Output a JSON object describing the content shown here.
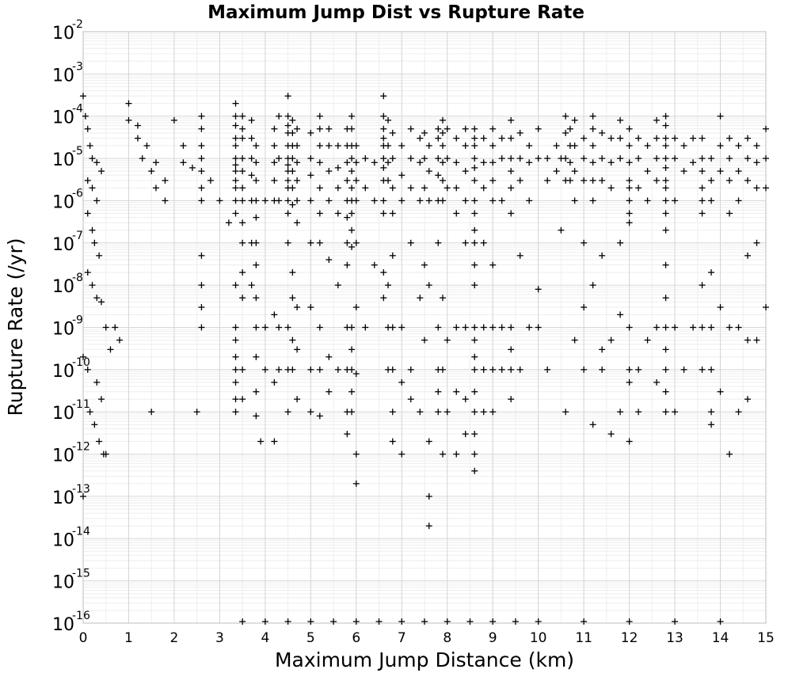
{
  "chart_data": {
    "type": "scatter",
    "title": "Maximum Jump Dist vs Rupture Rate",
    "xlabel": "Maximum Jump Distance (km)",
    "ylabel": "Rupture Rate (/yr)",
    "xlim": [
      0,
      15
    ],
    "ylim": [
      1e-16,
      0.01
    ],
    "yscale": "log",
    "grid": true,
    "marker": "+",
    "marker_color": "#000000",
    "x_ticks": [
      "0",
      "1",
      "2",
      "3",
      "4",
      "5",
      "6",
      "7",
      "8",
      "9",
      "10",
      "11",
      "12",
      "13",
      "14",
      "15"
    ],
    "y_ticks": [
      {
        "base": "10",
        "exp": "-2"
      },
      {
        "base": "10",
        "exp": "-3"
      },
      {
        "base": "10",
        "exp": "-4"
      },
      {
        "base": "10",
        "exp": "-5"
      },
      {
        "base": "10",
        "exp": "-6"
      },
      {
        "base": "10",
        "exp": "-7"
      },
      {
        "base": "10",
        "exp": "-8"
      },
      {
        "base": "10",
        "exp": "-9"
      },
      {
        "base": "10",
        "exp": "-10"
      },
      {
        "base": "10",
        "exp": "-11"
      },
      {
        "base": "10",
        "exp": "-12"
      },
      {
        "base": "10",
        "exp": "-13"
      },
      {
        "base": "10",
        "exp": "-14"
      },
      {
        "base": "10",
        "exp": "-15"
      },
      {
        "base": "10",
        "exp": "-16"
      }
    ],
    "x": [
      0.0,
      0.05,
      0.1,
      0.15,
      0.2,
      0.3,
      0.4,
      0.1,
      0.2,
      0.3,
      0.1,
      0.2,
      0.25,
      0.35,
      0.1,
      0.2,
      0.3,
      0.4,
      0.5,
      0.6,
      0.0,
      0.1,
      0.3,
      0.4,
      0.15,
      0.25,
      0.35,
      0.45,
      0.7,
      0.8,
      1.0,
      1.2,
      1.3,
      1.5,
      1.6,
      1.8,
      1.0,
      1.2,
      1.4,
      1.6,
      1.8,
      2.0,
      2.2,
      2.4,
      2.6,
      2.6,
      2.6,
      2.6,
      2.6,
      2.6,
      2.6,
      2.6,
      2.6,
      2.6,
      2.6,
      2.2,
      2.8,
      3.0,
      3.2,
      3.35,
      3.35,
      3.35,
      3.35,
      3.35,
      3.35,
      3.35,
      3.35,
      3.35,
      3.35,
      3.35,
      3.35,
      3.35,
      3.35,
      3.35,
      3.35,
      3.35,
      3.35,
      3.35,
      3.35,
      3.5,
      3.5,
      3.5,
      3.5,
      3.5,
      3.5,
      3.5,
      3.5,
      3.5,
      3.5,
      3.5,
      3.5,
      3.5,
      3.7,
      3.7,
      3.7,
      3.7,
      3.7,
      3.7,
      3.7,
      3.8,
      3.8,
      3.8,
      3.8,
      3.8,
      3.8,
      3.8,
      3.8,
      3.8,
      3.8,
      3.8,
      3.8,
      4.0,
      4.0,
      4.0,
      4.2,
      4.2,
      4.2,
      4.2,
      4.2,
      4.2,
      4.2,
      4.3,
      4.3,
      4.3,
      4.3,
      4.3,
      4.5,
      4.5,
      4.5,
      4.5,
      4.5,
      4.5,
      4.5,
      4.5,
      4.5,
      4.5,
      4.5,
      4.5,
      4.5,
      4.5,
      4.5,
      4.5,
      4.6,
      4.6,
      4.6,
      4.6,
      4.6,
      4.6,
      4.6,
      4.6,
      4.6,
      4.6,
      4.6,
      4.7,
      4.7,
      4.7,
      4.7,
      4.7,
      4.7,
      4.7,
      4.7,
      4.7,
      5.0,
      5.0,
      5.0,
      5.0,
      5.0,
      5.0,
      5.0,
      5.0,
      5.2,
      5.2,
      5.2,
      5.2,
      5.2,
      5.2,
      5.2,
      5.2,
      5.2,
      5.2,
      5.4,
      5.4,
      5.4,
      5.4,
      5.4,
      5.4,
      5.4,
      5.6,
      5.6,
      5.6,
      5.6,
      5.6,
      5.6,
      5.8,
      5.8,
      5.8,
      5.8,
      5.8,
      5.8,
      5.8,
      5.8,
      5.8,
      5.8,
      5.8,
      5.8,
      5.9,
      5.9,
      5.9,
      5.9,
      5.9,
      5.9,
      5.9,
      5.9,
      5.9,
      5.9,
      5.9,
      5.9,
      5.9,
      5.9,
      5.9,
      6.0,
      6.0,
      6.0,
      6.0,
      6.0,
      6.0,
      6.0,
      6.0,
      6.2,
      6.2,
      6.2,
      6.4,
      6.4,
      6.4,
      6.6,
      6.6,
      6.6,
      6.6,
      6.6,
      6.6,
      6.6,
      6.6,
      6.6,
      6.6,
      6.6,
      6.6,
      6.7,
      6.7,
      6.7,
      6.7,
      6.7,
      6.7,
      6.7,
      6.8,
      6.8,
      6.8,
      6.8,
      6.8,
      6.8,
      6.8,
      6.8,
      6.8,
      7.0,
      7.0,
      7.0,
      7.0,
      7.0,
      7.0,
      7.2,
      7.2,
      7.2,
      7.2,
      7.2,
      7.2,
      7.4,
      7.4,
      7.4,
      7.4,
      7.4,
      7.5,
      7.5,
      7.5,
      7.5,
      7.5,
      7.6,
      7.6,
      7.6,
      7.6,
      7.6,
      7.6,
      7.8,
      7.8,
      7.8,
      7.8,
      7.8,
      7.8,
      7.8,
      7.8,
      7.8,
      7.8,
      7.9,
      7.9,
      7.9,
      7.9,
      7.9,
      7.9,
      7.9,
      7.9,
      7.9,
      8.0,
      8.0,
      8.0,
      8.0,
      8.0,
      8.2,
      8.2,
      8.2,
      8.2,
      8.2,
      8.2,
      8.2,
      8.4,
      8.4,
      8.4,
      8.4,
      8.4,
      8.4,
      8.4,
      8.4,
      8.6,
      8.6,
      8.6,
      8.6,
      8.6,
      8.6,
      8.6,
      8.6,
      8.6,
      8.6,
      8.6,
      8.6,
      8.6,
      8.6,
      8.6,
      8.6,
      8.6,
      8.6,
      8.6,
      8.6,
      8.8,
      8.8,
      8.8,
      8.8,
      8.8,
      8.8,
      8.8,
      9.0,
      9.0,
      9.0,
      9.0,
      9.0,
      9.0,
      9.0,
      9.0,
      9.0,
      9.2,
      9.2,
      9.2,
      9.2,
      9.2,
      9.4,
      9.4,
      9.4,
      9.4,
      9.4,
      9.4,
      9.4,
      9.4,
      9.4,
      9.4,
      9.6,
      9.6,
      9.6,
      9.6,
      9.6,
      9.8,
      9.8,
      9.8,
      9.8,
      10.0,
      10.0,
      10.0,
      10.0,
      10.2,
      10.2,
      10.2,
      10.4,
      10.4,
      10.5,
      10.5,
      10.6,
      10.6,
      10.6,
      10.6,
      10.6,
      10.7,
      10.7,
      10.7,
      10.7,
      10.8,
      10.8,
      10.8,
      10.8,
      10.8,
      11.0,
      11.0,
      11.0,
      11.0,
      11.0,
      11.0,
      11.2,
      11.2,
      11.2,
      11.2,
      11.2,
      11.2,
      11.2,
      11.2,
      11.4,
      11.4,
      11.4,
      11.4,
      11.4,
      11.4,
      11.6,
      11.6,
      11.6,
      11.6,
      11.6,
      11.8,
      11.8,
      11.8,
      11.8,
      11.8,
      11.8,
      12.0,
      12.0,
      12.0,
      12.0,
      12.0,
      12.0,
      12.0,
      12.0,
      12.0,
      12.0,
      12.0,
      12.0,
      12.2,
      12.2,
      12.2,
      12.2,
      12.2,
      12.4,
      12.4,
      12.4,
      12.4,
      12.6,
      12.6,
      12.6,
      12.6,
      12.6,
      12.6,
      12.8,
      12.8,
      12.8,
      12.8,
      12.8,
      12.8,
      12.8,
      12.8,
      12.8,
      12.8,
      12.8,
      12.8,
      12.8,
      12.8,
      12.8,
      12.8,
      12.8,
      12.8,
      13.0,
      13.0,
      13.0,
      13.0,
      13.0,
      13.2,
      13.2,
      13.2,
      13.4,
      13.4,
      13.4,
      13.6,
      13.6,
      13.6,
      13.6,
      13.6,
      13.6,
      13.6,
      13.6,
      13.6,
      13.8,
      13.8,
      13.8,
      13.8,
      13.8,
      13.8,
      13.8,
      13.8,
      14.0,
      14.0,
      14.0,
      14.0,
      14.0,
      14.2,
      14.2,
      14.2,
      14.2,
      14.2,
      14.2,
      14.4,
      14.4,
      14.4,
      14.4,
      14.4,
      14.6,
      14.6,
      14.6,
      14.6,
      14.6,
      14.6,
      14.8,
      14.8,
      14.8,
      14.8,
      14.8,
      15.0,
      15.0,
      15.0,
      15.0,
      3.5,
      4.0,
      4.5,
      5.0,
      5.5,
      6.0,
      6.5,
      7.0,
      7.5,
      8.0,
      8.5,
      9.0,
      9.5,
      10.0,
      11.0,
      12.0,
      13.0,
      14.0,
      2.5,
      4.2,
      6.0,
      7.6,
      8.6,
      0.0,
      0.5,
      1.5,
      3.9
    ],
    "y": [
      0.0003,
      0.0001,
      5e-05,
      2e-05,
      1e-05,
      8e-06,
      5e-06,
      3e-06,
      2e-06,
      1e-06,
      5e-07,
      2e-07,
      1e-07,
      5e-08,
      2e-08,
      1e-08,
      5e-09,
      4e-09,
      1e-09,
      3e-10,
      2e-10,
      1e-10,
      5e-11,
      2e-11,
      1e-11,
      5e-12,
      2e-12,
      1e-12,
      1e-09,
      5e-10,
      8e-05,
      3e-05,
      1e-05,
      5e-06,
      2e-06,
      1e-06,
      0.0002,
      6e-05,
      2e-05,
      8e-06,
      3e-06,
      8e-05,
      2e-05,
      6e-06,
      0.0001,
      5e-05,
      2e-05,
      1e-05,
      5e-06,
      2e-06,
      1e-06,
      5e-08,
      1e-08,
      3e-09,
      1e-09,
      8e-06,
      3e-06,
      1e-06,
      3e-07,
      0.0002,
      0.0001,
      6e-05,
      3e-05,
      2e-05,
      1e-05,
      7e-06,
      5e-06,
      3e-06,
      2e-06,
      1e-06,
      5e-07,
      1e-08,
      1e-09,
      5e-10,
      2e-10,
      1e-10,
      5e-11,
      2e-11,
      1e-11,
      0.0001,
      5e-05,
      3e-05,
      1e-05,
      5e-06,
      2e-06,
      1e-06,
      3e-07,
      1e-07,
      2e-08,
      5e-09,
      1e-10,
      2e-11,
      8e-05,
      3e-05,
      1e-05,
      4e-06,
      1e-06,
      1e-07,
      1e-08,
      2e-05,
      8e-06,
      3e-06,
      1e-06,
      4e-07,
      1e-07,
      3e-08,
      5e-09,
      1e-09,
      2e-10,
      3e-11,
      8e-12,
      1e-06,
      1e-09,
      1e-10,
      5e-05,
      2e-05,
      8e-06,
      3e-06,
      1e-06,
      2e-09,
      5e-11,
      0.0001,
      1e-05,
      1e-06,
      1e-09,
      1e-10,
      0.0003,
      0.0001,
      6e-05,
      4e-05,
      2e-05,
      1e-05,
      7e-06,
      5e-06,
      3e-06,
      2e-06,
      1e-06,
      5e-07,
      1e-07,
      1e-09,
      1e-10,
      1e-11,
      8e-05,
      4e-05,
      2e-05,
      1e-05,
      5e-06,
      2e-06,
      8e-07,
      2e-08,
      5e-09,
      5e-10,
      1e-10,
      5e-05,
      2e-05,
      8e-06,
      3e-06,
      1e-06,
      3e-07,
      3e-09,
      3e-10,
      2e-11,
      4e-05,
      1e-05,
      4e-06,
      1e-06,
      1e-07,
      3e-09,
      1e-10,
      1e-11,
      0.0001,
      5e-05,
      2e-05,
      8e-06,
      2e-06,
      5e-07,
      1e-07,
      1e-09,
      1e-10,
      8e-12,
      5e-05,
      2e-05,
      5e-06,
      1e-06,
      4e-08,
      2e-10,
      3e-11,
      2e-05,
      6e-06,
      2e-06,
      5e-07,
      1e-08,
      1e-10,
      5e-05,
      2e-05,
      8e-06,
      3e-06,
      1e-06,
      4e-07,
      1e-07,
      3e-08,
      1e-09,
      1e-10,
      1e-11,
      3e-12,
      0.0001,
      5e-05,
      2e-05,
      1e-05,
      5e-06,
      2e-06,
      1e-06,
      5e-07,
      2e-07,
      8e-08,
      1e-09,
      3e-10,
      1e-10,
      3e-11,
      1e-11,
      2e-05,
      8e-06,
      3e-06,
      1e-06,
      1e-07,
      3e-09,
      8e-11,
      2e-13,
      1e-05,
      2e-06,
      1e-09,
      8e-06,
      1e-06,
      3e-08,
      0.0003,
      0.0001,
      5e-05,
      3e-05,
      2e-05,
      1e-05,
      6e-06,
      3e-06,
      1e-06,
      5e-07,
      2e-08,
      5e-09,
      8e-05,
      2e-05,
      8e-06,
      3e-06,
      1e-08,
      1e-09,
      1e-10,
      4e-05,
      1e-05,
      2e-06,
      5e-07,
      5e-08,
      1e-09,
      1e-10,
      1e-11,
      2e-12,
      2e-05,
      4e-06,
      1e-06,
      1e-09,
      5e-11,
      1e-12,
      5e-05,
      1e-05,
      2e-06,
      1e-07,
      1e-10,
      2e-11,
      3e-05,
      8e-06,
      1e-06,
      5e-09,
      1e-11,
      4e-05,
      1e-05,
      2e-06,
      3e-08,
      5e-10,
      2e-05,
      5e-06,
      1e-06,
      1e-08,
      2e-14,
      2e-12,
      5e-05,
      3e-05,
      1e-05,
      4e-06,
      1e-06,
      1e-07,
      1e-09,
      1e-10,
      3e-11,
      1e-11,
      8e-05,
      4e-05,
      2e-05,
      8e-06,
      3e-06,
      1e-06,
      5e-09,
      1e-10,
      1e-12,
      5e-05,
      1e-05,
      2e-06,
      5e-10,
      1e-11,
      3e-05,
      8e-06,
      2e-06,
      5e-07,
      1e-09,
      3e-11,
      1e-12,
      5e-05,
      2e-05,
      5e-06,
      1e-06,
      1e-07,
      1e-09,
      2e-11,
      3e-12,
      5e-05,
      3e-05,
      2e-05,
      1e-05,
      6e-06,
      3e-06,
      1e-06,
      5e-07,
      2e-07,
      1e-07,
      3e-08,
      1e-08,
      1e-09,
      5e-10,
      2e-10,
      1e-10,
      3e-11,
      1e-11,
      3e-12,
      4e-13,
      3e-05,
      8e-06,
      2e-06,
      1e-07,
      1e-09,
      1e-10,
      1e-11,
      5e-05,
      2e-05,
      8e-06,
      3e-06,
      1e-06,
      3e-08,
      1e-09,
      1e-10,
      1e-11,
      3e-05,
      1e-05,
      1e-06,
      1e-09,
      1e-10,
      8e-05,
      3e-05,
      1e-05,
      5e-06,
      2e-06,
      5e-07,
      1e-09,
      3e-10,
      1e-10,
      2e-11,
      4e-05,
      1e-05,
      3e-06,
      5e-08,
      1e-10,
      2e-05,
      8e-06,
      1e-06,
      1e-09,
      5e-05,
      1e-05,
      8e-09,
      1e-09,
      1e-05,
      3e-06,
      1e-10,
      2e-05,
      5e-06,
      1e-05,
      2e-07,
      0.0001,
      4e-05,
      1e-05,
      3e-06,
      1e-11,
      5e-05,
      2e-05,
      8e-06,
      3e-06,
      8e-05,
      2e-05,
      5e-06,
      1e-06,
      5e-10,
      3e-05,
      1e-05,
      3e-06,
      1e-07,
      3e-09,
      1e-10,
      0.0001,
      5e-05,
      2e-05,
      8e-06,
      3e-06,
      1e-06,
      1e-08,
      5e-12,
      4e-05,
      1e-05,
      3e-06,
      5e-08,
      3e-10,
      1e-10,
      3e-05,
      8e-06,
      2e-06,
      5e-10,
      3e-12,
      8e-05,
      3e-05,
      1e-05,
      1e-07,
      2e-09,
      1e-11,
      5e-05,
      2e-05,
      8e-06,
      3e-06,
      2e-06,
      1e-06,
      5e-07,
      3e-07,
      1e-09,
      1e-10,
      5e-11,
      2e-12,
      3e-05,
      1e-05,
      2e-06,
      1e-10,
      1e-11,
      2e-05,
      5e-06,
      1e-06,
      5e-10,
      8e-05,
      3e-05,
      1e-05,
      3e-06,
      1e-09,
      5e-11,
      0.0001,
      6e-05,
      3e-05,
      2e-05,
      1e-05,
      6e-06,
      3e-06,
      2e-06,
      1e-06,
      5e-07,
      2e-07,
      3e-08,
      5e-09,
      1e-09,
      3e-10,
      1e-10,
      3e-11,
      1e-11,
      3e-05,
      1e-05,
      1e-06,
      1e-09,
      1e-11,
      2e-05,
      5e-06,
      1e-10,
      3e-05,
      8e-06,
      1e-09,
      3e-05,
      1e-05,
      5e-06,
      2e-06,
      1e-06,
      5e-07,
      1e-08,
      1e-09,
      1e-10,
      1e-05,
      3e-06,
      1e-06,
      2e-08,
      1e-09,
      1e-10,
      1e-11,
      5e-12,
      0.0001,
      2e-05,
      5e-06,
      3e-09,
      3e-11,
      3e-05,
      1e-05,
      3e-06,
      5e-07,
      1e-09,
      1e-12,
      2e-05,
      5e-06,
      1e-06,
      1e-09,
      1e-11,
      3e-05,
      1e-05,
      3e-06,
      5e-08,
      5e-10,
      2e-11,
      2e-05,
      8e-06,
      2e-06,
      1e-07,
      5e-10,
      5e-05,
      1e-05,
      2e-06,
      3e-09,
      1e-16,
      1e-16,
      1e-16,
      1e-16,
      1e-16,
      1e-16,
      1e-16,
      1e-16,
      1e-16,
      1e-16,
      1e-16,
      1e-16,
      1e-16,
      1e-16,
      1e-16,
      1e-16,
      1e-16,
      1e-16,
      1e-11,
      2e-12,
      1e-12,
      1e-13,
      1e-12,
      1e-13,
      1e-12,
      1e-11,
      2e-12
    ]
  }
}
